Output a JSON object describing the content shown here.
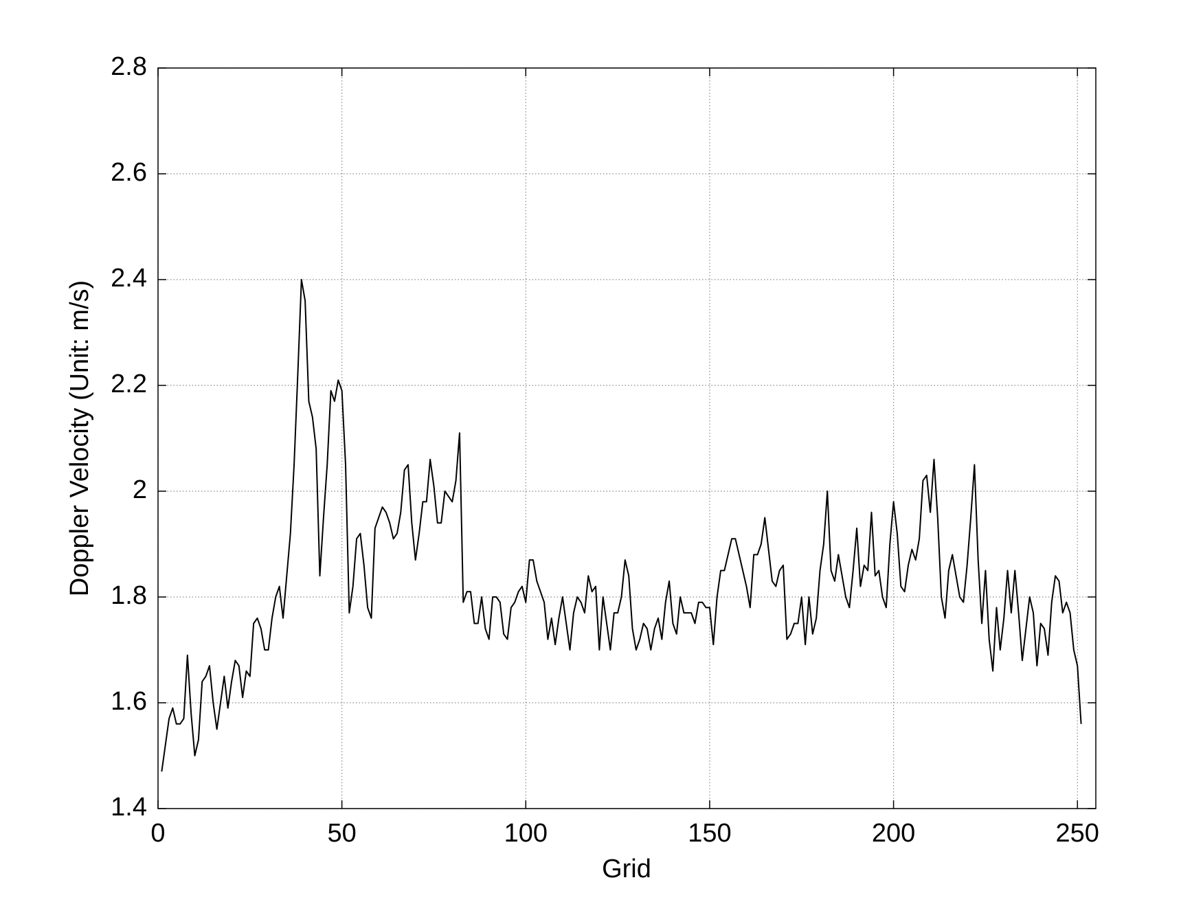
{
  "chart_data": {
    "type": "line",
    "x_label": "Grid",
    "y_label": "Doppler Velocity (Unit: m/s)",
    "x": [
      1,
      2,
      3,
      4,
      5,
      6,
      7,
      8,
      9,
      10,
      11,
      12,
      13,
      14,
      15,
      16,
      17,
      18,
      19,
      20,
      21,
      22,
      23,
      24,
      25,
      26,
      27,
      28,
      29,
      30,
      31,
      32,
      33,
      34,
      35,
      36,
      37,
      38,
      39,
      40,
      41,
      42,
      43,
      44,
      45,
      46,
      47,
      48,
      49,
      50,
      51,
      52,
      53,
      54,
      55,
      56,
      57,
      58,
      59,
      60,
      61,
      62,
      63,
      64,
      65,
      66,
      67,
      68,
      69,
      70,
      71,
      72,
      73,
      74,
      75,
      76,
      77,
      78,
      79,
      80,
      81,
      82,
      83,
      84,
      85,
      86,
      87,
      88,
      89,
      90,
      91,
      92,
      93,
      94,
      95,
      96,
      97,
      98,
      99,
      100,
      101,
      102,
      103,
      104,
      105,
      106,
      107,
      108,
      109,
      110,
      111,
      112,
      113,
      114,
      115,
      116,
      117,
      118,
      119,
      120,
      121,
      122,
      123,
      124,
      125,
      126,
      127,
      128,
      129,
      130,
      131,
      132,
      133,
      134,
      135,
      136,
      137,
      138,
      139,
      140,
      141,
      142,
      143,
      144,
      145,
      146,
      147,
      148,
      149,
      150,
      151,
      152,
      153,
      154,
      155,
      156,
      157,
      158,
      159,
      160,
      161,
      162,
      163,
      164,
      165,
      166,
      167,
      168,
      169,
      170,
      171,
      172,
      173,
      174,
      175,
      176,
      177,
      178,
      179,
      180,
      181,
      182,
      183,
      184,
      185,
      186,
      187,
      188,
      189,
      190,
      191,
      192,
      193,
      194,
      195,
      196,
      197,
      198,
      199,
      200,
      201,
      202,
      203,
      204,
      205,
      206,
      207,
      208,
      209,
      210,
      211,
      212,
      213,
      214,
      215,
      216,
      217,
      218,
      219,
      220,
      221,
      222,
      223,
      224,
      225,
      226,
      227,
      228,
      229,
      230,
      231,
      232,
      233,
      234,
      235,
      236,
      237,
      238,
      239,
      240,
      241,
      242,
      243,
      244,
      245,
      246,
      247,
      248,
      249,
      250,
      251
    ],
    "series": [
      {
        "color": "#000000",
        "values": [
          1.47,
          1.52,
          1.57,
          1.59,
          1.56,
          1.56,
          1.57,
          1.69,
          1.58,
          1.5,
          1.53,
          1.64,
          1.65,
          1.67,
          1.6,
          1.55,
          1.6,
          1.65,
          1.59,
          1.64,
          1.68,
          1.67,
          1.61,
          1.66,
          1.65,
          1.75,
          1.76,
          1.74,
          1.7,
          1.7,
          1.76,
          1.8,
          1.82,
          1.76,
          1.84,
          1.92,
          2.05,
          2.22,
          2.4,
          2.36,
          2.17,
          2.14,
          2.08,
          1.84,
          1.95,
          2.05,
          2.19,
          2.17,
          2.21,
          2.19,
          2.05,
          1.77,
          1.82,
          1.91,
          1.92,
          1.86,
          1.78,
          1.76,
          1.93,
          1.95,
          1.97,
          1.96,
          1.94,
          1.91,
          1.92,
          1.96,
          2.04,
          2.05,
          1.94,
          1.87,
          1.92,
          1.98,
          1.98,
          2.06,
          2.01,
          1.94,
          1.94,
          2.0,
          1.99,
          1.98,
          2.02,
          2.11,
          1.79,
          1.81,
          1.81,
          1.75,
          1.75,
          1.8,
          1.74,
          1.72,
          1.8,
          1.8,
          1.79,
          1.73,
          1.72,
          1.78,
          1.79,
          1.81,
          1.82,
          1.79,
          1.87,
          1.87,
          1.83,
          1.81,
          1.79,
          1.72,
          1.76,
          1.71,
          1.76,
          1.8,
          1.75,
          1.7,
          1.77,
          1.8,
          1.79,
          1.77,
          1.84,
          1.81,
          1.82,
          1.7,
          1.8,
          1.75,
          1.7,
          1.77,
          1.77,
          1.8,
          1.87,
          1.84,
          1.74,
          1.7,
          1.72,
          1.75,
          1.74,
          1.7,
          1.74,
          1.76,
          1.72,
          1.79,
          1.83,
          1.75,
          1.73,
          1.8,
          1.77,
          1.77,
          1.77,
          1.75,
          1.79,
          1.79,
          1.78,
          1.78,
          1.71,
          1.8,
          1.85,
          1.85,
          1.88,
          1.91,
          1.91,
          1.88,
          1.85,
          1.82,
          1.78,
          1.88,
          1.88,
          1.9,
          1.95,
          1.89,
          1.83,
          1.82,
          1.85,
          1.86,
          1.72,
          1.73,
          1.75,
          1.75,
          1.8,
          1.71,
          1.8,
          1.73,
          1.76,
          1.85,
          1.9,
          2.0,
          1.85,
          1.83,
          1.88,
          1.84,
          1.8,
          1.78,
          1.85,
          1.93,
          1.82,
          1.86,
          1.85,
          1.96,
          1.84,
          1.85,
          1.8,
          1.78,
          1.9,
          1.98,
          1.92,
          1.82,
          1.81,
          1.86,
          1.89,
          1.87,
          1.91,
          2.02,
          2.03,
          1.96,
          2.06,
          1.95,
          1.8,
          1.76,
          1.85,
          1.88,
          1.84,
          1.8,
          1.79,
          1.86,
          1.95,
          2.05,
          1.87,
          1.75,
          1.85,
          1.72,
          1.66,
          1.78,
          1.7,
          1.76,
          1.85,
          1.77,
          1.85,
          1.77,
          1.68,
          1.74,
          1.8,
          1.77,
          1.67,
          1.75,
          1.74,
          1.69,
          1.79,
          1.84,
          1.83,
          1.77,
          1.79,
          1.77,
          1.7,
          1.67,
          1.56
        ]
      }
    ],
    "xlim": [
      0,
      255
    ],
    "ylim": [
      1.4,
      2.8
    ],
    "xticks": [
      0,
      50,
      100,
      150,
      200,
      250
    ],
    "yticks": [
      1.4,
      1.6,
      1.8,
      2,
      2.2,
      2.4,
      2.6,
      2.8
    ],
    "grid": true
  }
}
